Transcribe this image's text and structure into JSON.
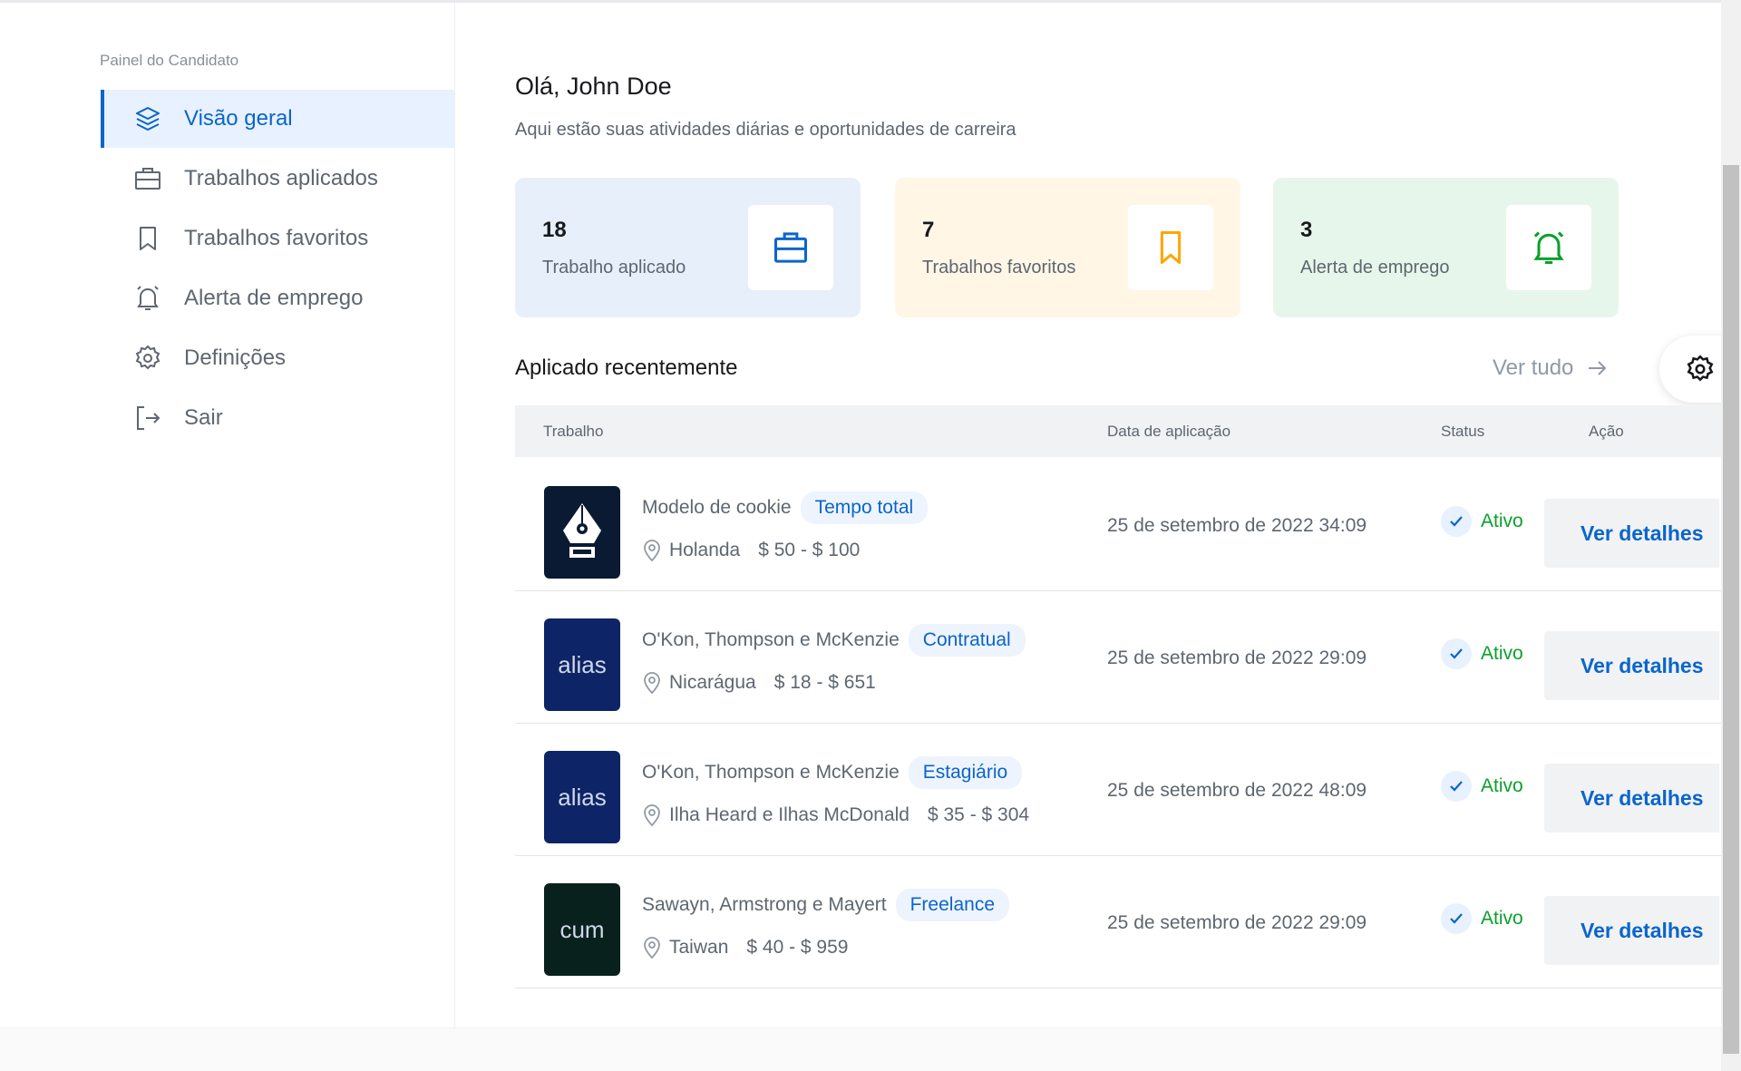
{
  "sidebar": {
    "title": "Painel do Candidato",
    "items": [
      {
        "label": "Visão geral",
        "icon": "layers-icon",
        "active": true
      },
      {
        "label": "Trabalhos aplicados",
        "icon": "briefcase-icon"
      },
      {
        "label": "Trabalhos favoritos",
        "icon": "bookmark-icon"
      },
      {
        "label": "Alerta de emprego",
        "icon": "bell-icon"
      },
      {
        "label": "Definições",
        "icon": "gear-icon"
      },
      {
        "label": "Sair",
        "icon": "sign-out-icon"
      }
    ]
  },
  "main": {
    "greeting": "Olá, John Doe",
    "subtitle": "Aqui estão suas atividades diárias e oportunidades de carreira",
    "cards": [
      {
        "value": "18",
        "label": "Trabalho aplicado",
        "bg": "#e7f0fa",
        "color": "#0a65cc",
        "icon": "briefcase-icon"
      },
      {
        "value": "7",
        "label": "Trabalhos favoritos",
        "bg": "#fff6e6",
        "color": "#ffa500",
        "icon": "bookmark-icon"
      },
      {
        "value": "3",
        "label": "Alerta de emprego",
        "bg": "#e7f6ea",
        "color": "#0ba02c",
        "icon": "bell-icon"
      }
    ],
    "recent_title": "Aplicado recentemente",
    "view_all": "Ver tudo",
    "table": {
      "headers": [
        "Trabalho",
        "Data de aplicação",
        "Status",
        "Ação"
      ],
      "rows": [
        {
          "logo": "",
          "logo_bg": "#0b1a33",
          "name": "Modelo de cookie",
          "type": "Tempo total",
          "location": "Holanda",
          "salary": "$ 50 - $ 100",
          "date": "25 de setembro de 2022 34:09",
          "status": "Ativo",
          "action": "Ver detalhes"
        },
        {
          "logo": "alias",
          "logo_bg": "#0d2466",
          "name": "O'Kon, Thompson e McKenzie",
          "type": "Contratual",
          "location": "Nicarágua",
          "salary": "$ 18 - $ 651",
          "date": "25 de setembro de 2022 29:09",
          "status": "Ativo",
          "action": "Ver detalhes"
        },
        {
          "logo": "alias",
          "logo_bg": "#0d2466",
          "name": "O'Kon, Thompson e McKenzie",
          "type": "Estagiário",
          "location": "Ilha Heard e Ilhas McDonald",
          "salary": "$ 35 - $ 304",
          "date": "25 de setembro de 2022 48:09",
          "status": "Ativo",
          "action": "Ver detalhes"
        },
        {
          "logo": "cum",
          "logo_bg": "#08211c",
          "name": "Sawayn, Armstrong e Mayert",
          "type": "Freelance",
          "location": "Taiwan",
          "salary": "$ 40 - $ 959",
          "date": "25 de setembro de 2022 29:09",
          "status": "Ativo",
          "action": "Ver detalhes"
        }
      ]
    }
  }
}
